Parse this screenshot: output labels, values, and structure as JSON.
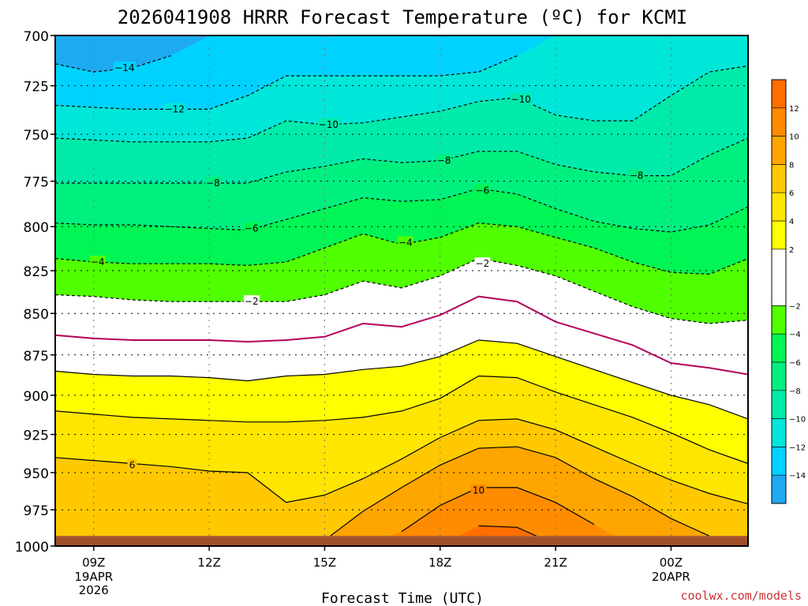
{
  "chart_data": {
    "type": "heatmap",
    "title": "2026041908 HRRR Forecast Temperature (ºC) for KCMI",
    "xlabel": "Forecast Time (UTC)",
    "ylabel": "",
    "y_ticks": [
      "700",
      "725",
      "750",
      "775",
      "800",
      "825",
      "850",
      "875",
      "900",
      "925",
      "950",
      "975",
      "1000"
    ],
    "y_range": [
      700,
      1000
    ],
    "y_scale": "log",
    "x_ticks": [
      {
        "hour": 9,
        "label": "09Z",
        "sub": [
          "19APR",
          "2026"
        ]
      },
      {
        "hour": 12,
        "label": "12Z",
        "sub": []
      },
      {
        "hour": 15,
        "label": "15Z",
        "sub": []
      },
      {
        "hour": 18,
        "label": "18Z",
        "sub": []
      },
      {
        "hour": 21,
        "label": "21Z",
        "sub": []
      },
      {
        "hour": 24,
        "label": "00Z",
        "sub": [
          "20APR"
        ]
      }
    ],
    "x_range_hours": [
      8,
      26
    ],
    "x_hours": [
      8,
      9,
      10,
      11,
      12,
      13,
      14,
      15,
      16,
      17,
      18,
      19,
      20,
      21,
      22,
      23,
      24,
      25,
      26
    ],
    "contour_levels": [
      -14,
      -12,
      -10,
      -8,
      -6,
      -4,
      -2,
      0,
      2,
      4,
      6,
      8,
      10,
      12
    ],
    "isotherm_pressures": {
      "-14": [
        714,
        718,
        716,
        710,
        700,
        700,
        700,
        700,
        700,
        700,
        700,
        700,
        700,
        700,
        700,
        700,
        700,
        700,
        700
      ],
      "-12": [
        735,
        736,
        737,
        737,
        737,
        730,
        720,
        720,
        720,
        720,
        720,
        718,
        710,
        700,
        700,
        700,
        700,
        700,
        700
      ],
      "-10": [
        752,
        753,
        754,
        754,
        754,
        752,
        743,
        745,
        744,
        741,
        738,
        733,
        731,
        740,
        743,
        743,
        730,
        718,
        715
      ],
      "-8": [
        776,
        776,
        776,
        776,
        776,
        776,
        770,
        767,
        763,
        765,
        764,
        759,
        759,
        766,
        770,
        772,
        772,
        761,
        752
      ],
      "-6": [
        798,
        799,
        799,
        800,
        801,
        802,
        796,
        790,
        784,
        786,
        785,
        779,
        782,
        790,
        797,
        801,
        803,
        799,
        789
      ],
      "-4": [
        818,
        820,
        821,
        821,
        821,
        822,
        820,
        812,
        804,
        810,
        806,
        798,
        800,
        806,
        812,
        820,
        826,
        827,
        818
      ],
      "-2": [
        839,
        840,
        842,
        843,
        843,
        843,
        843,
        839,
        831,
        835,
        828,
        818,
        822,
        828,
        837,
        846,
        853,
        856,
        854
      ],
      "0": [
        863,
        865,
        866,
        866,
        866,
        867,
        866,
        864,
        856,
        858,
        851,
        840,
        843,
        855,
        862,
        869,
        880,
        883,
        887
      ],
      "2": [
        885,
        887,
        888,
        888,
        889,
        891,
        888,
        887,
        884,
        882,
        876,
        866,
        868,
        876,
        884,
        892,
        900,
        906,
        915
      ],
      "4": [
        910,
        912,
        914,
        915,
        916,
        917,
        917,
        916,
        914,
        910,
        902,
        888,
        889,
        898,
        906,
        914,
        924,
        935,
        944
      ],
      "6": [
        940,
        942,
        944,
        946,
        949,
        950,
        970,
        965,
        954,
        941,
        927,
        916,
        915,
        922,
        933,
        944,
        955,
        964,
        971
      ],
      "8": [
        1000,
        1000,
        1000,
        1000,
        1000,
        1000,
        1000,
        996,
        976,
        960,
        945,
        934,
        933,
        940,
        954,
        966,
        981,
        993,
        1000
      ],
      "10": [
        1000,
        1000,
        1000,
        1000,
        1000,
        1000,
        1000,
        1000,
        1000,
        990,
        972,
        960,
        960,
        970,
        985,
        1000,
        1000,
        1000,
        1000
      ],
      "12": [
        1000,
        1000,
        1000,
        1000,
        1000,
        1000,
        1000,
        1000,
        1000,
        1000,
        1000,
        986,
        987,
        999,
        1000,
        1000,
        1000,
        1000,
        1000
      ]
    },
    "contour_labels": [
      {
        "level": -14,
        "text": "−14",
        "hour": 9.8,
        "p": 716
      },
      {
        "level": -12,
        "text": "−12",
        "hour": 11.1,
        "p": 737
      },
      {
        "level": -10,
        "text": "−10",
        "hour": 15.1,
        "p": 745
      },
      {
        "level": -10,
        "text": "−10",
        "hour": 20.1,
        "p": 732
      },
      {
        "level": -8,
        "text": "−8",
        "hour": 12.1,
        "p": 776
      },
      {
        "level": -8,
        "text": "−8",
        "hour": 18.1,
        "p": 764
      },
      {
        "level": -8,
        "text": "−8",
        "hour": 23.1,
        "p": 772
      },
      {
        "level": -6,
        "text": "−6",
        "hour": 13.1,
        "p": 801
      },
      {
        "level": -6,
        "text": "−6",
        "hour": 19.1,
        "p": 780
      },
      {
        "level": -4,
        "text": "−4",
        "hour": 9.1,
        "p": 820
      },
      {
        "level": -4,
        "text": "−4",
        "hour": 17.1,
        "p": 809
      },
      {
        "level": -2,
        "text": "−2",
        "hour": 13.1,
        "p": 843
      },
      {
        "level": -2,
        "text": "−2",
        "hour": 19.1,
        "p": 821
      },
      {
        "level": 6,
        "text": "6",
        "hour": 10.0,
        "p": 945
      },
      {
        "level": 10,
        "text": "10",
        "hour": 19.0,
        "p": 962
      }
    ],
    "colorbar": {
      "ticks": [
        "−14",
        "−12",
        "−10",
        "−8",
        "−6",
        "−4",
        "−2",
        "2",
        "4",
        "6",
        "8",
        "10",
        "12"
      ],
      "range": [
        -16,
        14
      ]
    },
    "colors": {
      "-16": "#1eaaf0",
      "-14": "#00d2ff",
      "-12": "#00e6d8",
      "-10": "#00ebaa",
      "-8": "#00f080",
      "-6": "#00f555",
      "-4": "#50ff00",
      "-2": "#ffffff",
      "2": "#ffff00",
      "4": "#ffe600",
      "6": "#ffc800",
      "8": "#ffa500",
      "10": "#ff8c00",
      "12": "#ff6e00",
      "freezing_line": "#b4005a",
      "ground": "#a05028",
      "ground_top": "#b06030"
    },
    "freezing_isotherm": 0
  },
  "credit": "coolwx.com/models"
}
